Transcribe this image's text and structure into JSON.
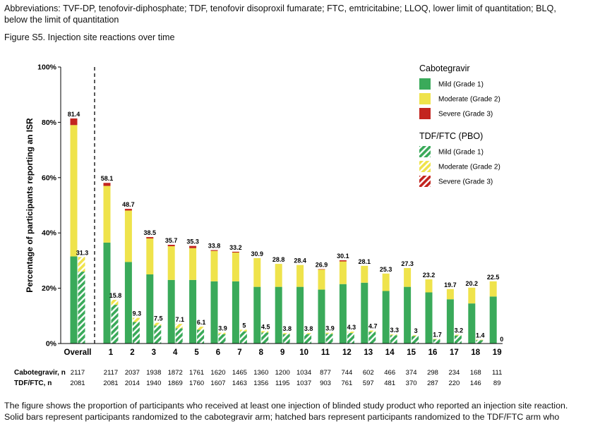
{
  "header": {
    "abbrev_line1": "Abbreviations: TVF-DP, tenofovir-diphosphate; TDF, tenofovir disoproxil fumarate; FTC, emtricitabine; LLOQ,  lower limit of quantitation; BLQ,",
    "abbrev_line2": "below the limit of quantitation",
    "figure_title": "Figure S5. Injection site reactions over time"
  },
  "footer": {
    "line1": "The figure shows the proportion of participants who received at least one injection of blinded study product who reported an injection site reaction.",
    "line2": "Solid bars represent participants randomized to the cabotegravir arm; hatched bars represent participants randomized to the TDF/FTC arm who"
  },
  "colors": {
    "mild": "#3aaa5a",
    "moderate": "#efe34b",
    "severe": "#c3251f"
  },
  "chart_data": {
    "type": "bar",
    "stacked": true,
    "ylabel": "Percentage of participants reporting an ISR",
    "ylim": [
      0,
      100
    ],
    "yticks": [
      "0%",
      "20%",
      "40%",
      "60%",
      "80%",
      "100%"
    ],
    "ytick_values": [
      0,
      20,
      40,
      60,
      80,
      100
    ],
    "categories": [
      "Overall",
      "1",
      "2",
      "3",
      "4",
      "5",
      "6",
      "7",
      "8",
      "9",
      "10",
      "11",
      "12",
      "13",
      "14",
      "15",
      "16",
      "17",
      "18",
      "19"
    ],
    "legend": {
      "groups": [
        {
          "title": "Cabotegravir",
          "pattern": "solid",
          "entries": [
            "Mild (Grade 1)",
            "Moderate (Grade 2)",
            "Severe (Grade 3)"
          ]
        },
        {
          "title": "TDF/FTC (PBO)",
          "pattern": "hatched",
          "entries": [
            "Mild (Grade 1)",
            "Moderate (Grade 2)",
            "Severe (Grade 3)"
          ]
        }
      ]
    },
    "cabotegravir": {
      "totals": [
        "81.4",
        "58.1",
        "48.7",
        "38.5",
        "35.7",
        "35.3",
        "33.8",
        "33.2",
        "30.9",
        "28.8",
        "28.4",
        "26.9",
        "30.1",
        "28.1",
        "25.3",
        "27.3",
        "23.2",
        "19.7",
        "20.2",
        "22.5"
      ],
      "mild": [
        31.5,
        36.5,
        29.5,
        25,
        23,
        23,
        22.5,
        22.5,
        20.5,
        20.5,
        20.5,
        19.5,
        21.5,
        22,
        19,
        20.5,
        18.5,
        16,
        14.5,
        17
      ],
      "moderate": [
        47.5,
        20.5,
        18.6,
        13,
        12.2,
        11.5,
        11,
        10.4,
        10.4,
        8.3,
        7.9,
        7.3,
        8.2,
        6.1,
        6.3,
        6.8,
        4.7,
        3.7,
        5.7,
        5.5
      ],
      "severe": [
        2.4,
        1.1,
        0.6,
        0.5,
        0.5,
        0.8,
        0.3,
        0.3,
        0,
        0,
        0,
        0.1,
        0.4,
        0,
        0,
        0,
        0,
        0,
        0,
        0
      ]
    },
    "tdf_ftc": {
      "totals": [
        "31.3",
        "15.8",
        "9.3",
        "7.5",
        "7.1",
        "6.1",
        "3.9",
        "5",
        "4.5",
        "3.8",
        "3.8",
        "3.9",
        "4.3",
        "4.7",
        "3.3",
        "3",
        "1.7",
        "3.2",
        "1.4",
        "0"
      ],
      "mild": [
        26,
        14,
        7.8,
        6.5,
        5.5,
        5,
        3.4,
        4.4,
        4,
        3.4,
        3.4,
        3.5,
        3.8,
        4.2,
        3,
        2.7,
        1.5,
        2.9,
        1.2,
        0
      ],
      "moderate": [
        5.3,
        1.8,
        1.5,
        1,
        1.6,
        1.1,
        0.5,
        0.6,
        0.5,
        0.4,
        0.4,
        0.4,
        0.5,
        0.5,
        0.3,
        0.3,
        0.2,
        0.3,
        0.2,
        0
      ],
      "severe": [
        0,
        0,
        0,
        0,
        0,
        0,
        0,
        0,
        0,
        0,
        0,
        0,
        0,
        0,
        0,
        0,
        0,
        0,
        0,
        0
      ]
    },
    "n_table": {
      "rows": [
        {
          "label": "Cabotegravir, n",
          "values": [
            "2117",
            "2117",
            "2037",
            "1938",
            "1872",
            "1761",
            "1620",
            "1465",
            "1360",
            "1200",
            "1034",
            "877",
            "744",
            "602",
            "466",
            "374",
            "298",
            "234",
            "168",
            "111"
          ]
        },
        {
          "label": "TDF/FTC, n",
          "values": [
            "2081",
            "2081",
            "2014",
            "1940",
            "1869",
            "1760",
            "1607",
            "1463",
            "1356",
            "1195",
            "1037",
            "903",
            "761",
            "597",
            "481",
            "370",
            "287",
            "220",
            "146",
            "89"
          ]
        }
      ]
    }
  }
}
